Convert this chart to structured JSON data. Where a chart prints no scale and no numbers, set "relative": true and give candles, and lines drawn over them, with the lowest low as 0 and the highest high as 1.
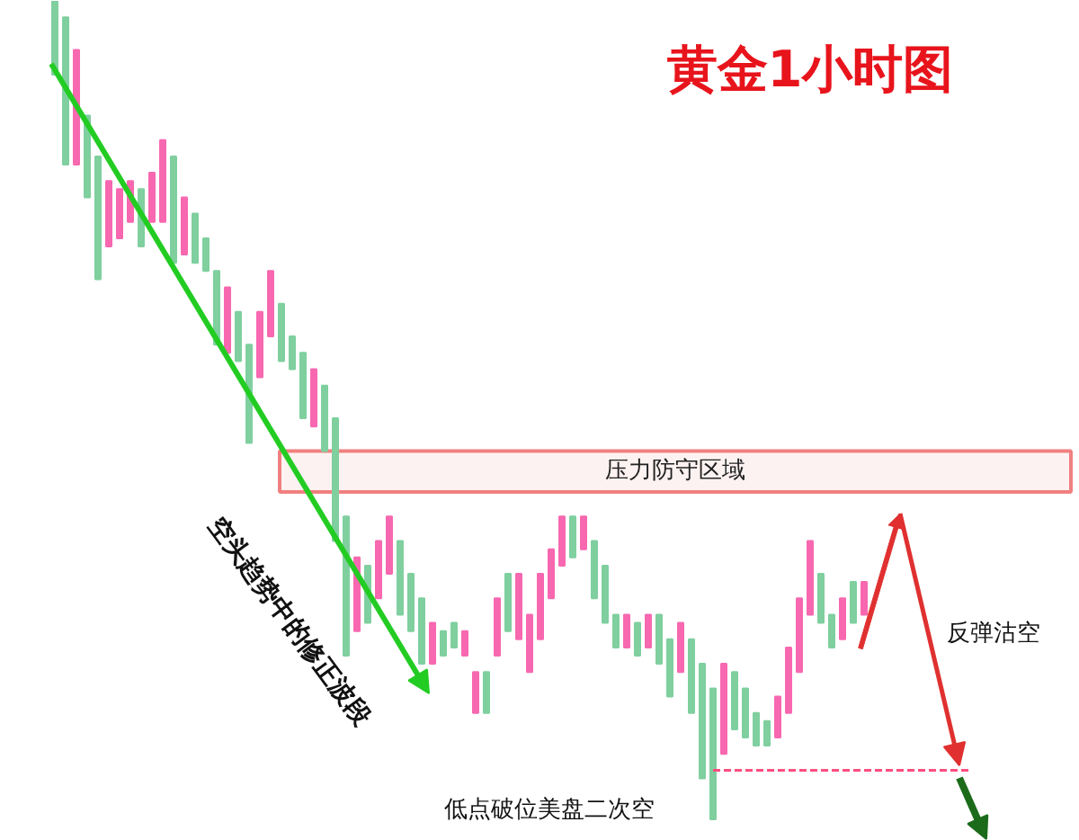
{
  "chart_data": {
    "type": "candlestick",
    "title": "黄金1小时图",
    "relative": true,
    "categories": [
      null,
      null,
      null,
      null,
      null,
      null,
      null,
      null,
      null,
      null,
      null,
      null,
      null,
      null,
      null,
      null,
      null,
      null,
      null,
      null,
      null,
      null,
      null,
      null,
      null,
      null,
      null,
      null,
      null,
      null,
      null,
      null,
      null,
      null,
      null,
      null,
      null,
      null,
      null,
      null,
      null,
      null,
      null,
      null,
      null,
      null,
      null,
      null,
      null,
      null,
      null,
      null,
      null,
      null,
      null,
      null,
      null,
      null,
      null,
      null,
      null,
      null,
      null,
      null,
      null,
      null,
      null,
      null,
      null,
      null,
      null,
      null,
      null,
      null,
      null,
      null
    ],
    "ohlc": [
      [
        1,
        1,
        0.91,
        0.91
      ],
      [
        0.98,
        0.98,
        0.8,
        0.8
      ],
      [
        0.8,
        0.94,
        0.8,
        0.94
      ],
      [
        0.86,
        0.86,
        0.76,
        0.76
      ],
      [
        0.81,
        0.81,
        0.66,
        0.66
      ],
      [
        0.7,
        0.78,
        0.7,
        0.78
      ],
      [
        0.71,
        0.77,
        0.71,
        0.77
      ],
      [
        0.73,
        0.78,
        0.73,
        0.78
      ],
      [
        0.77,
        0.77,
        0.7,
        0.7
      ],
      [
        0.73,
        0.79,
        0.73,
        0.79
      ],
      [
        0.73,
        0.83,
        0.73,
        0.83
      ],
      [
        0.81,
        0.81,
        0.68,
        0.68
      ],
      [
        0.69,
        0.76,
        0.69,
        0.76
      ],
      [
        0.74,
        0.74,
        0.68,
        0.68
      ],
      [
        0.71,
        0.71,
        0.67,
        0.67
      ],
      [
        0.67,
        0.67,
        0.58,
        0.58
      ],
      [
        0.57,
        0.65,
        0.57,
        0.65
      ],
      [
        0.62,
        0.62,
        0.56,
        0.56
      ],
      [
        0.58,
        0.58,
        0.46,
        0.46
      ],
      [
        0.54,
        0.62,
        0.54,
        0.62
      ],
      [
        0.59,
        0.67,
        0.59,
        0.67
      ],
      [
        0.63,
        0.63,
        0.56,
        0.56
      ],
      [
        0.59,
        0.59,
        0.55,
        0.55
      ],
      [
        0.57,
        0.57,
        0.49,
        0.49
      ],
      [
        0.48,
        0.55,
        0.48,
        0.55
      ],
      [
        0.53,
        0.53,
        0.45,
        0.45
      ],
      [
        0.49,
        0.49,
        0.34,
        0.34
      ],
      [
        0.37,
        0.37,
        0.2,
        0.2
      ],
      [
        0.23,
        0.32,
        0.23,
        0.32
      ],
      [
        0.31,
        0.31,
        0.24,
        0.24
      ],
      [
        0.27,
        0.34,
        0.27,
        0.34
      ],
      [
        0.3,
        0.37,
        0.3,
        0.37
      ],
      [
        0.34,
        0.34,
        0.25,
        0.25
      ],
      [
        0.3,
        0.3,
        0.23,
        0.23
      ],
      [
        0.27,
        0.27,
        0.19,
        0.19
      ],
      [
        0.19,
        0.24,
        0.19,
        0.24
      ],
      [
        0.23,
        0.23,
        0.2,
        0.2
      ],
      [
        0.24,
        0.24,
        0.21,
        0.21
      ],
      [
        0.2,
        0.23,
        0.2,
        0.23
      ],
      [
        0.13,
        0.18,
        0.13,
        0.18
      ],
      [
        0.18,
        0.18,
        0.13,
        0.13
      ],
      [
        0.2,
        0.27,
        0.2,
        0.27
      ],
      [
        0.3,
        0.3,
        0.23,
        0.23
      ],
      [
        0.22,
        0.3,
        0.22,
        0.3
      ],
      [
        0.18,
        0.25,
        0.18,
        0.25
      ],
      [
        0.22,
        0.3,
        0.22,
        0.3
      ],
      [
        0.27,
        0.33,
        0.27,
        0.33
      ],
      [
        0.31,
        0.37,
        0.31,
        0.37
      ],
      [
        0.37,
        0.37,
        0.32,
        0.32
      ],
      [
        0.33,
        0.37,
        0.33,
        0.37
      ],
      [
        0.34,
        0.34,
        0.27,
        0.27
      ],
      [
        0.31,
        0.31,
        0.24,
        0.24
      ],
      [
        0.25,
        0.25,
        0.21,
        0.21
      ],
      [
        0.21,
        0.25,
        0.21,
        0.25
      ],
      [
        0.24,
        0.24,
        0.2,
        0.2
      ],
      [
        0.21,
        0.25,
        0.21,
        0.25
      ],
      [
        0.25,
        0.25,
        0.19,
        0.19
      ],
      [
        0.22,
        0.22,
        0.15,
        0.15
      ],
      [
        0.18,
        0.24,
        0.18,
        0.24
      ],
      [
        0.22,
        0.22,
        0.13,
        0.13
      ],
      [
        0.19,
        0.19,
        0.05,
        0.05
      ],
      [
        0.16,
        0.16,
        0,
        0
      ],
      [
        0.08,
        0.19,
        0.08,
        0.19
      ],
      [
        0.18,
        0.18,
        0.11,
        0.11
      ],
      [
        0.16,
        0.16,
        0.1,
        0.1
      ],
      [
        0.13,
        0.13,
        0.09,
        0.09
      ],
      [
        0.12,
        0.12,
        0.09,
        0.09
      ],
      [
        0.1,
        0.15,
        0.1,
        0.15
      ],
      [
        0.13,
        0.21,
        0.13,
        0.21
      ],
      [
        0.18,
        0.27,
        0.18,
        0.27
      ],
      [
        0.25,
        0.34,
        0.25,
        0.34
      ],
      [
        0.3,
        0.3,
        0.24,
        0.24
      ],
      [
        0.25,
        0.25,
        0.21,
        0.21
      ],
      [
        0.22,
        0.27,
        0.22,
        0.27
      ],
      [
        0.29,
        0.29,
        0.24,
        0.24
      ],
      [
        0.25,
        0.29,
        0.25,
        0.29
      ]
    ],
    "colors": [
      "#7fcf9f",
      "#7fcf9f",
      "#f768b0",
      "#7fcf9f",
      "#7fcf9f",
      "#f768b0",
      "#f768b0",
      "#f768b0",
      "#7fcf9f",
      "#f768b0",
      "#f768b0",
      "#7fcf9f",
      "#f768b0",
      "#7fcf9f",
      "#7fcf9f",
      "#7fcf9f",
      "#f768b0",
      "#7fcf9f",
      "#7fcf9f",
      "#f768b0",
      "#f768b0",
      "#7fcf9f",
      "#7fcf9f",
      "#7fcf9f",
      "#f768b0",
      "#7fcf9f",
      "#7fcf9f",
      "#7fcf9f",
      "#f768b0",
      "#7fcf9f",
      "#f768b0",
      "#f768b0",
      "#7fcf9f",
      "#7fcf9f",
      "#7fcf9f",
      "#f768b0",
      "#7fcf9f",
      "#7fcf9f",
      "#f768b0",
      "#f768b0",
      "#7fcf9f",
      "#f768b0",
      "#7fcf9f",
      "#f768b0",
      "#f768b0",
      "#f768b0",
      "#f768b0",
      "#f768b0",
      "#7fcf9f",
      "#f768b0",
      "#7fcf9f",
      "#7fcf9f",
      "#7fcf9f",
      "#f768b0",
      "#7fcf9f",
      "#f768b0",
      "#7fcf9f",
      "#7fcf9f",
      "#f768b0",
      "#7fcf9f",
      "#7fcf9f",
      "#7fcf9f",
      "#f768b0",
      "#7fcf9f",
      "#7fcf9f",
      "#7fcf9f",
      "#7fcf9f",
      "#f768b0",
      "#f768b0",
      "#f768b0",
      "#f768b0",
      "#7fcf9f",
      "#7fcf9f",
      "#f768b0",
      "#7fcf9f",
      "#f768b0"
    ],
    "bands": [
      {
        "axis": "y",
        "from": 0.4,
        "to": 0.45,
        "label": "压力防守区域",
        "color": "#f08080"
      }
    ],
    "ref_lines": [
      {
        "axis": "y",
        "value": 0.06,
        "label": null,
        "color": "#ff4f7f",
        "line_style": "dashed"
      }
    ],
    "annotations": [
      "空头趋势中的修正波段",
      "反弹沽空",
      "低点破位美盘二次空"
    ]
  }
}
